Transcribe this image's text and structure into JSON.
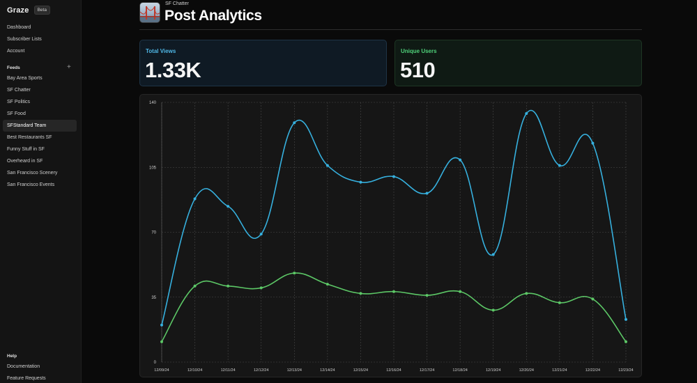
{
  "app": {
    "name": "Graze",
    "badge": "Beta"
  },
  "sidebar": {
    "top_items": [
      {
        "label": "Dashboard"
      },
      {
        "label": "Subscriber Lists"
      },
      {
        "label": "Account"
      }
    ],
    "feeds_header": "Feeds",
    "feeds_add": "+",
    "feeds": [
      {
        "label": "Bay Area Sports"
      },
      {
        "label": "SF Chatter"
      },
      {
        "label": "SF Politics"
      },
      {
        "label": "SF Food"
      },
      {
        "label": "SFStandard Team",
        "active": true
      },
      {
        "label": "Best Restaurants SF"
      },
      {
        "label": "Funny Stuff in SF"
      },
      {
        "label": "Overheard in SF"
      },
      {
        "label": "San Francisco Scenery"
      },
      {
        "label": "San Francisco Events"
      }
    ],
    "help_header": "Help",
    "help_items": [
      {
        "label": "Documentation"
      },
      {
        "label": "Feature Requests"
      }
    ]
  },
  "header": {
    "subtitle": "SF Chatter",
    "title": "Post Analytics"
  },
  "stats": {
    "total_views": {
      "label": "Total Views",
      "value": "1.33K",
      "color": "#4fb7e6"
    },
    "unique_users": {
      "label": "Unique Users",
      "value": "510",
      "color": "#4fd17a"
    }
  },
  "chart_data": {
    "type": "line",
    "x": [
      "12/09/24",
      "12/10/24",
      "12/11/24",
      "12/12/24",
      "12/13/24",
      "12/14/24",
      "12/15/24",
      "12/16/24",
      "12/17/24",
      "12/18/24",
      "12/19/24",
      "12/20/24",
      "12/21/24",
      "12/22/24",
      "12/23/24"
    ],
    "series": [
      {
        "color": "#36b0de",
        "values": [
          20,
          88,
          84,
          69,
          129,
          106,
          97,
          100,
          91,
          109,
          58,
          134,
          106,
          118,
          23
        ]
      },
      {
        "color": "#5cc766",
        "values": [
          11,
          41,
          41,
          40,
          48,
          42,
          37,
          38,
          36,
          38,
          28,
          37,
          32,
          34,
          11
        ]
      }
    ],
    "ylim": [
      0,
      140
    ],
    "yticks": [
      0,
      35,
      70,
      105,
      140
    ],
    "grid": true
  }
}
